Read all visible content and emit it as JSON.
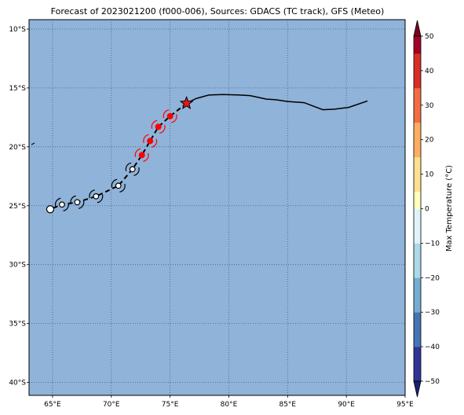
{
  "title": "Forecast of 2023021200 (f000-006), Sources: GDACS (TC track), GFS (Meteo)",
  "map": {
    "lon_range": [
      63,
      95
    ],
    "lat_range": [
      -41.1,
      -9.2
    ],
    "ocean_color": "#8fb3d9",
    "grid": "dotted",
    "lon_ticks": [
      {
        "value": 65,
        "label": "65°E"
      },
      {
        "value": 70,
        "label": "70°E"
      },
      {
        "value": 75,
        "label": "75°E"
      },
      {
        "value": 80,
        "label": "80°E"
      },
      {
        "value": 85,
        "label": "85°E"
      },
      {
        "value": 90,
        "label": "90°E"
      },
      {
        "value": 95,
        "label": "95°E"
      }
    ],
    "lat_ticks": [
      {
        "value": -10,
        "label": "10°S"
      },
      {
        "value": -15,
        "label": "15°S"
      },
      {
        "value": -20,
        "label": "20°S"
      },
      {
        "value": -25,
        "label": "25°S"
      },
      {
        "value": -30,
        "label": "30°S"
      },
      {
        "value": -35,
        "label": "35°S"
      },
      {
        "value": -40,
        "label": "40°S"
      }
    ]
  },
  "track": {
    "past_track": [
      [
        76.4,
        -16.3
      ],
      [
        77.2,
        -15.9
      ],
      [
        78.3,
        -15.6
      ],
      [
        79.5,
        -15.55
      ],
      [
        80.9,
        -15.6
      ],
      [
        81.8,
        -15.65
      ],
      [
        82.5,
        -15.8
      ],
      [
        83.2,
        -15.95
      ],
      [
        84.0,
        -16.0
      ],
      [
        85.0,
        -16.15
      ],
      [
        86.4,
        -16.25
      ],
      [
        87.2,
        -16.55
      ],
      [
        88.0,
        -16.85
      ],
      [
        89.0,
        -16.8
      ],
      [
        90.2,
        -16.65
      ],
      [
        91.8,
        -16.1
      ]
    ],
    "forecast_points": [
      {
        "lon": 76.4,
        "lat": -16.3,
        "category": "current",
        "color": "#e41a1c"
      },
      {
        "lon": 75.0,
        "lat": -17.4,
        "category": "cyclone",
        "color": "#ff0000"
      },
      {
        "lon": 74.0,
        "lat": -18.3,
        "category": "cyclone",
        "color": "#ff0000"
      },
      {
        "lon": 73.3,
        "lat": -19.5,
        "category": "cyclone",
        "color": "#ff0000"
      },
      {
        "lon": 72.6,
        "lat": -20.7,
        "category": "cyclone",
        "color": "#ff0000"
      },
      {
        "lon": 71.8,
        "lat": -21.9,
        "category": "depression",
        "color": "#ffffff"
      },
      {
        "lon": 70.6,
        "lat": -23.3,
        "category": "depression",
        "color": "#ffffff"
      },
      {
        "lon": 68.7,
        "lat": -24.2,
        "category": "depression",
        "color": "#ffffff"
      },
      {
        "lon": 67.1,
        "lat": -24.7,
        "category": "depression",
        "color": "#ffffff"
      },
      {
        "lon": 65.8,
        "lat": -24.9,
        "category": "depression",
        "color": "#ffffff"
      },
      {
        "lon": 64.8,
        "lat": -25.3,
        "category": "low",
        "color": "#ffffff"
      }
    ],
    "current_marker": "star-icon",
    "cyclone_symbol": "cyclone-icon"
  },
  "colorbar": {
    "label": "Max Temperature (°C)",
    "min": -50,
    "max": 50,
    "step": 5,
    "ticks": [
      {
        "value": 50,
        "label": "50"
      },
      {
        "value": 40,
        "label": "40"
      },
      {
        "value": 30,
        "label": "30"
      },
      {
        "value": 20,
        "label": "20"
      },
      {
        "value": 10,
        "label": "10"
      },
      {
        "value": 0,
        "label": "0"
      },
      {
        "value": -10,
        "label": "−10"
      },
      {
        "value": -20,
        "label": "−20"
      },
      {
        "value": -30,
        "label": "−30"
      },
      {
        "value": -40,
        "label": "−40"
      },
      {
        "value": -50,
        "label": "−50"
      }
    ],
    "colors": [
      "#313695",
      "#4575b4",
      "#74add1",
      "#abd9e9",
      "#e0f3f8",
      "#ffffbf",
      "#fee090",
      "#fdae61",
      "#f46d43",
      "#d73027",
      "#a50026"
    ],
    "under_color": "#1f1f6e",
    "over_color": "#7a0020"
  }
}
